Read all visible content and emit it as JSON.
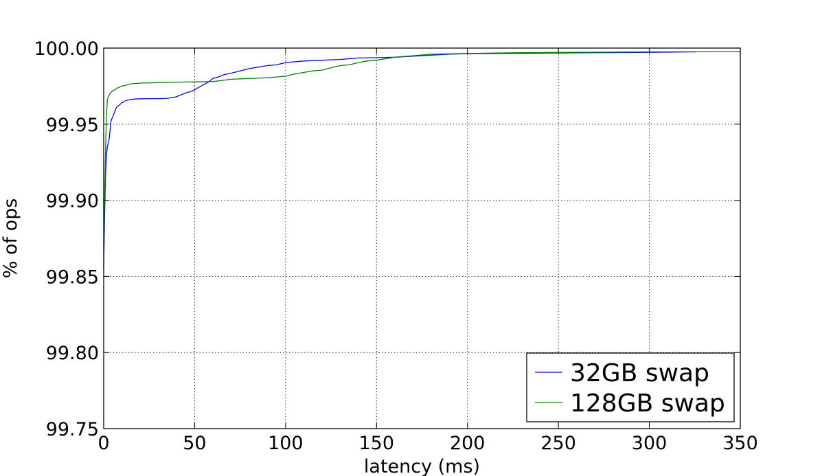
{
  "chart_data": {
    "type": "line",
    "title": "",
    "xlabel": "latency (ms)",
    "ylabel": "% of ops",
    "xlim": [
      0,
      350
    ],
    "ylim": [
      99.75,
      100.0
    ],
    "xticks": [
      0,
      50,
      100,
      150,
      200,
      250,
      300,
      350
    ],
    "xtick_labels": [
      "0",
      "50",
      "100",
      "150",
      "200",
      "250",
      "300",
      "350"
    ],
    "yticks": [
      99.75,
      99.8,
      99.85,
      99.9,
      99.95,
      100.0
    ],
    "ytick_labels": [
      "99.75",
      "99.80",
      "99.85",
      "99.90",
      "99.95",
      "100.00"
    ],
    "grid": true,
    "legend_position": "lower-right",
    "series": [
      {
        "name": "32GB swap",
        "color": "#0000ff",
        "x": [
          0,
          0.5,
          1,
          1.5,
          2,
          3,
          4,
          5,
          6,
          7,
          8,
          9,
          10,
          12,
          14,
          17,
          20,
          25,
          30,
          35,
          38,
          40,
          42,
          45,
          48,
          50,
          52,
          55,
          58,
          60,
          63,
          66,
          70,
          75,
          80,
          85,
          90,
          95,
          100,
          110,
          120,
          130,
          140,
          150,
          160,
          175,
          190,
          200,
          220,
          250,
          280,
          300,
          326
        ],
        "y": [
          99.855,
          99.89,
          99.915,
          99.93,
          99.935,
          99.94,
          99.952,
          99.955,
          99.958,
          99.961,
          99.962,
          99.963,
          99.964,
          99.9655,
          99.966,
          99.9665,
          99.9667,
          99.9668,
          99.9668,
          99.967,
          99.9675,
          99.968,
          99.969,
          99.9705,
          99.9715,
          99.9725,
          99.974,
          99.976,
          99.978,
          99.98,
          99.981,
          99.9825,
          99.9835,
          99.985,
          99.9865,
          99.9875,
          99.9885,
          99.989,
          99.9905,
          99.9915,
          99.992,
          99.9925,
          99.9935,
          99.9937,
          99.994,
          99.995,
          99.996,
          99.9963,
          99.9965,
          99.9968,
          99.997,
          99.9972,
          99.9975
        ]
      },
      {
        "name": "128GB swap",
        "color": "#008000",
        "x": [
          0,
          0.5,
          1,
          1.5,
          2,
          3,
          4,
          5,
          6,
          7,
          8,
          10,
          12,
          15,
          20,
          30,
          40,
          50,
          60,
          70,
          80,
          90,
          95,
          100,
          105,
          110,
          115,
          120,
          125,
          130,
          135,
          140,
          145,
          150,
          160,
          170,
          180,
          200,
          230,
          260,
          300,
          350
        ],
        "y": [
          99.87,
          99.9,
          99.93,
          99.955,
          99.966,
          99.969,
          99.971,
          99.972,
          99.9725,
          99.9735,
          99.974,
          99.975,
          99.9755,
          99.9765,
          99.977,
          99.9773,
          99.9776,
          99.9778,
          99.978,
          99.9795,
          99.98,
          99.9805,
          99.981,
          99.9815,
          99.983,
          99.984,
          99.985,
          99.9855,
          99.987,
          99.9885,
          99.989,
          99.9905,
          99.9915,
          99.992,
          99.994,
          99.995,
          99.996,
          99.9965,
          99.997,
          99.9972,
          99.9975,
          99.9977
        ]
      }
    ]
  }
}
